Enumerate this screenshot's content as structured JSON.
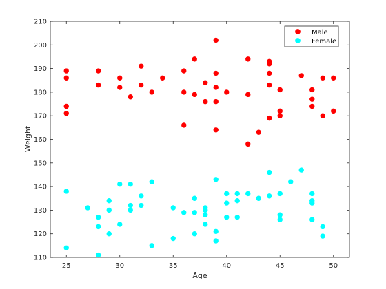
{
  "chart_data": {
    "type": "scatter",
    "xlabel": "Age",
    "ylabel": "Weight",
    "xlim": [
      23.5,
      51.5
    ],
    "ylim": [
      110,
      210
    ],
    "xticks": [
      25,
      30,
      35,
      40,
      45,
      50
    ],
    "yticks": [
      110,
      120,
      130,
      140,
      150,
      160,
      170,
      180,
      190,
      200,
      210
    ],
    "grid": false,
    "legend_position": "top-right",
    "series": [
      {
        "name": "Male",
        "color": "#ff0000",
        "points": [
          [
            25,
            189
          ],
          [
            25,
            186
          ],
          [
            25,
            174
          ],
          [
            25,
            171
          ],
          [
            28,
            189
          ],
          [
            28,
            183
          ],
          [
            30,
            186
          ],
          [
            30,
            182
          ],
          [
            31,
            178
          ],
          [
            32,
            191
          ],
          [
            32,
            183
          ],
          [
            33,
            180
          ],
          [
            34,
            186
          ],
          [
            36,
            189
          ],
          [
            36,
            180
          ],
          [
            36,
            166
          ],
          [
            37,
            194
          ],
          [
            37,
            179
          ],
          [
            38,
            184
          ],
          [
            38,
            176
          ],
          [
            39,
            202
          ],
          [
            39,
            188
          ],
          [
            39,
            182
          ],
          [
            39,
            176
          ],
          [
            39,
            164
          ],
          [
            40,
            180
          ],
          [
            42,
            194
          ],
          [
            42,
            179
          ],
          [
            42,
            158
          ],
          [
            43,
            163
          ],
          [
            44,
            193
          ],
          [
            44,
            192
          ],
          [
            44,
            188
          ],
          [
            44,
            183
          ],
          [
            44,
            169
          ],
          [
            45,
            181
          ],
          [
            45,
            172
          ],
          [
            45,
            170
          ],
          [
            47,
            187
          ],
          [
            48,
            181
          ],
          [
            48,
            177
          ],
          [
            48,
            174
          ],
          [
            49,
            186
          ],
          [
            49,
            170
          ],
          [
            50,
            186
          ],
          [
            50,
            172
          ]
        ]
      },
      {
        "name": "Female",
        "color": "#00ffff",
        "points": [
          [
            25,
            138
          ],
          [
            25,
            114
          ],
          [
            27,
            131
          ],
          [
            28,
            127
          ],
          [
            28,
            123
          ],
          [
            28,
            111
          ],
          [
            29,
            134
          ],
          [
            29,
            130
          ],
          [
            29,
            120
          ],
          [
            30,
            141
          ],
          [
            30,
            124
          ],
          [
            31,
            141
          ],
          [
            31,
            132
          ],
          [
            31,
            130
          ],
          [
            32,
            136
          ],
          [
            32,
            132
          ],
          [
            33,
            142
          ],
          [
            33,
            115
          ],
          [
            35,
            131
          ],
          [
            35,
            118
          ],
          [
            36,
            129
          ],
          [
            37,
            135
          ],
          [
            37,
            129
          ],
          [
            37,
            120
          ],
          [
            38,
            131
          ],
          [
            38,
            130
          ],
          [
            38,
            128
          ],
          [
            38,
            124
          ],
          [
            39,
            143
          ],
          [
            39,
            121
          ],
          [
            39,
            117
          ],
          [
            40,
            137
          ],
          [
            40,
            133
          ],
          [
            40,
            127
          ],
          [
            41,
            137
          ],
          [
            41,
            134
          ],
          [
            41,
            127
          ],
          [
            42,
            137
          ],
          [
            43,
            135
          ],
          [
            44,
            146
          ],
          [
            44,
            136
          ],
          [
            45,
            137
          ],
          [
            45,
            128
          ],
          [
            45,
            126
          ],
          [
            46,
            142
          ],
          [
            47,
            147
          ],
          [
            48,
            137
          ],
          [
            48,
            134
          ],
          [
            48,
            133
          ],
          [
            48,
            126
          ],
          [
            49,
            123
          ],
          [
            49,
            119
          ]
        ]
      }
    ]
  }
}
